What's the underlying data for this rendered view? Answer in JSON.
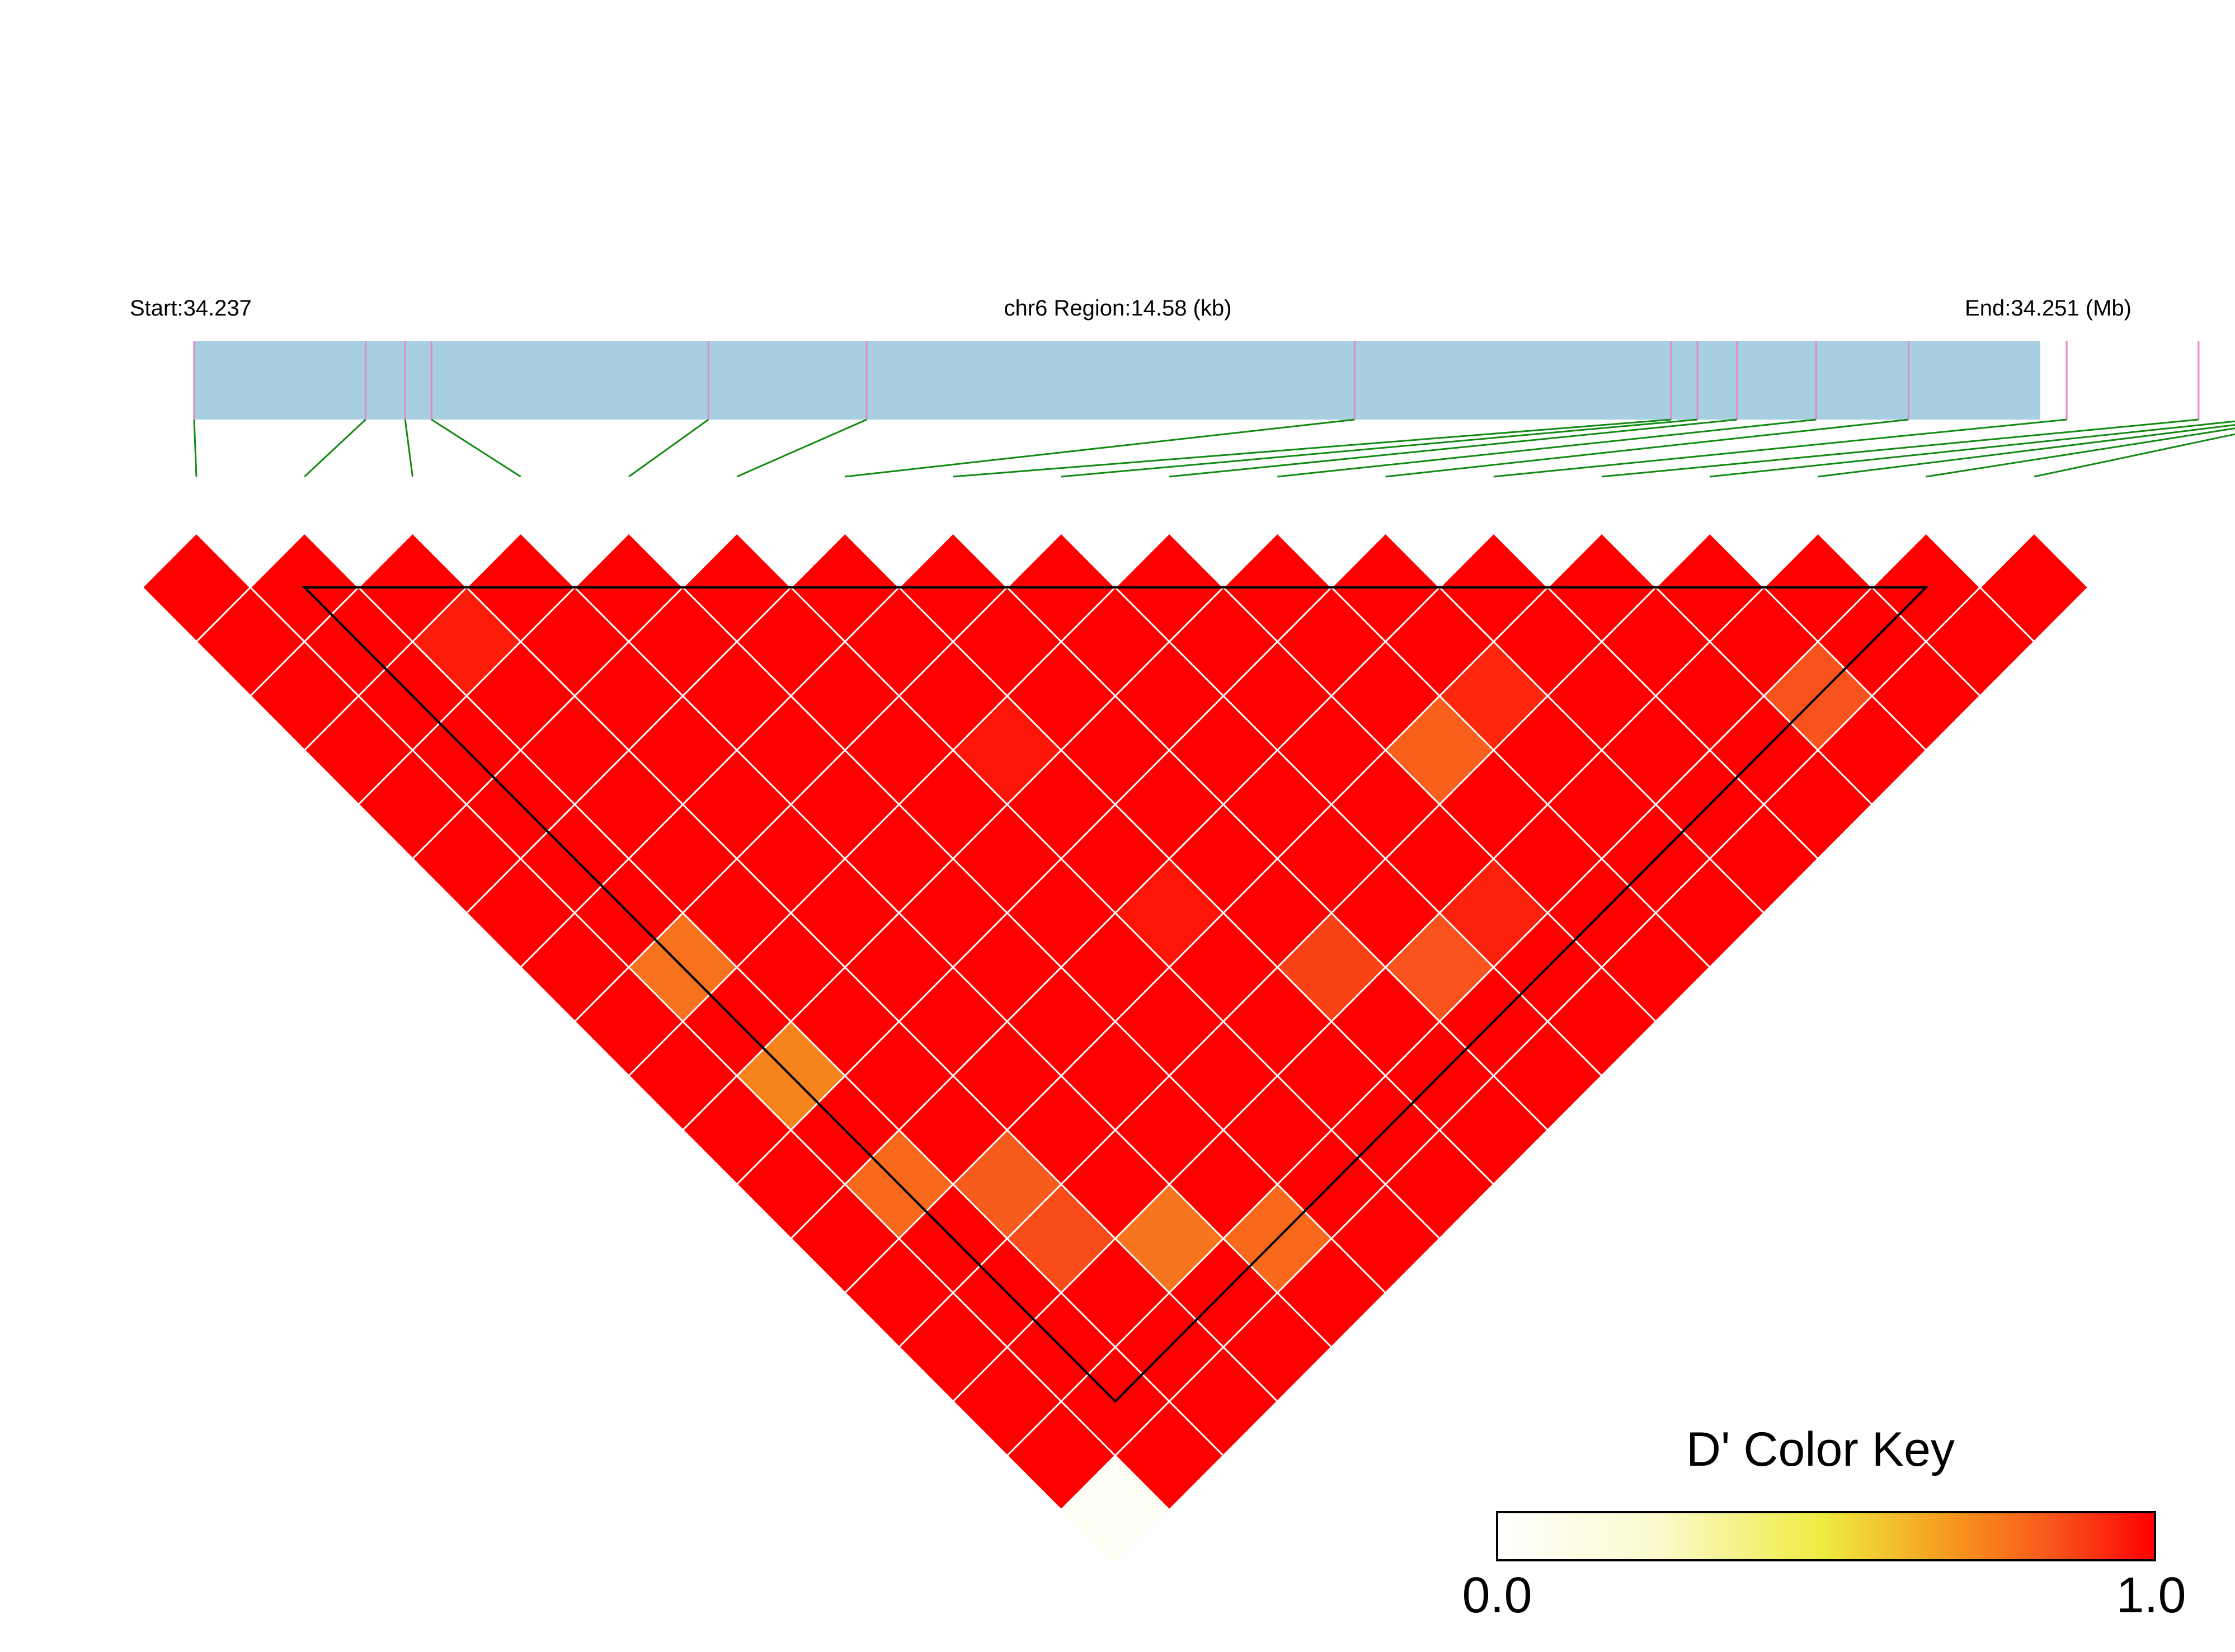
{
  "header": {
    "start_label": "Start:34.237",
    "region_label": "chr6 Region:14.58 (kb)",
    "end_label": "End:34.251 (Mb)"
  },
  "colors": {
    "track_fill": "#a8cfe1",
    "snp_tick": "#e287c0",
    "connector": "#138a13",
    "grid_line": "#ffffff",
    "block_outline": "#000000",
    "ld_high": "#ff0000",
    "ld_low": "#fffff0"
  },
  "chart_data": {
    "type": "heatmap",
    "title": "",
    "measure": "D'",
    "chromosome": "chr6",
    "region_start_mb": 34.237,
    "region_end_mb": 34.251,
    "region_length_kb": 14.58,
    "snp_positions_mb": [
      34.237,
      34.2383,
      34.2386,
      34.2388,
      34.2409,
      34.2421,
      34.2458,
      34.2482,
      34.2484,
      34.2487,
      34.2493,
      34.25,
      34.2512,
      34.2522,
      34.2526,
      34.2528,
      34.2529,
      34.253
    ],
    "default_d_prime": 1.0,
    "ld_exceptions": [
      {
        "i": 2,
        "j": 3,
        "d": 0.95
      },
      {
        "i": 10,
        "j": 13,
        "d": 0.82
      },
      {
        "i": 11,
        "j": 13,
        "d": 0.93
      },
      {
        "i": 14,
        "j": 16,
        "d": 0.85
      },
      {
        "i": 6,
        "j": 9,
        "d": 0.96
      },
      {
        "i": 7,
        "j": 14,
        "d": 0.88
      },
      {
        "i": 8,
        "j": 15,
        "d": 0.85
      },
      {
        "i": 9,
        "j": 15,
        "d": 0.94
      },
      {
        "i": 6,
        "j": 12,
        "d": 0.96
      },
      {
        "i": 1,
        "j": 8,
        "d": 0.78
      },
      {
        "i": 1,
        "j": 10,
        "d": 0.74
      },
      {
        "i": 1,
        "j": 12,
        "d": 0.8
      },
      {
        "i": 2,
        "j": 13,
        "d": 0.83
      },
      {
        "i": 2,
        "j": 14,
        "d": 0.86
      },
      {
        "i": 3,
        "j": 15,
        "d": 0.77
      },
      {
        "i": 4,
        "j": 16,
        "d": 0.8
      },
      {
        "i": 0,
        "j": 17,
        "d": 0.05
      }
    ],
    "blocks": [
      {
        "first_snp": 1,
        "last_snp": 16
      }
    ],
    "color_key": {
      "title": "D' Color Key",
      "min_label": "0.0",
      "max_label": "1.0",
      "range": [
        0.0,
        1.0
      ],
      "stops": [
        {
          "value": 0.0,
          "color": "#ffffff"
        },
        {
          "value": 0.25,
          "color": "#fafaca"
        },
        {
          "value": 0.5,
          "color": "#eeea3e"
        },
        {
          "value": 0.7,
          "color": "#f7941d"
        },
        {
          "value": 0.85,
          "color": "#f8531c"
        },
        {
          "value": 1.0,
          "color": "#ff0000"
        }
      ]
    }
  }
}
